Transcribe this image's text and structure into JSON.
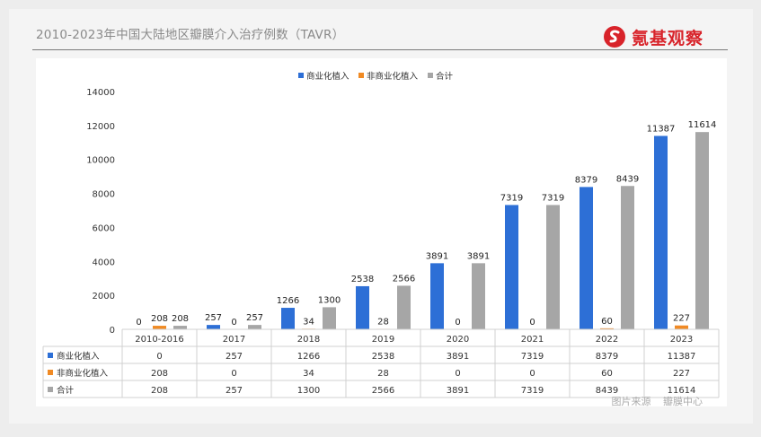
{
  "header": {
    "title": "2010-2023年中国大陆地区瓣膜介入治疗例数（TAVR）",
    "logo_text": "氪基观察",
    "logo_icon": "circle-s-logo-icon",
    "brand_color": "#d8232a"
  },
  "footer": {
    "source_label": "图片来源",
    "source_name": "瓣膜中心"
  },
  "chart_data": {
    "type": "bar",
    "title": "",
    "xlabel": "",
    "ylabel": "",
    "ylim": [
      0,
      14000
    ],
    "yticks": [
      0,
      2000,
      4000,
      6000,
      8000,
      10000,
      12000,
      14000
    ],
    "grid": false,
    "legend_position": "top",
    "data_table": true,
    "categories": [
      "2010-2016",
      "2017",
      "2018",
      "2019",
      "2020",
      "2021",
      "2022",
      "2023"
    ],
    "series": [
      {
        "name": "商业化植入",
        "color": "#2d6fd6",
        "values": [
          0,
          257,
          1266,
          2538,
          3891,
          7319,
          8379,
          11387
        ]
      },
      {
        "name": "非商业化植入",
        "color": "#f08a24",
        "values": [
          208,
          0,
          34,
          28,
          0,
          0,
          60,
          227
        ]
      },
      {
        "name": "合计",
        "color": "#a6a6a6",
        "values": [
          208,
          257,
          1300,
          2566,
          3891,
          7319,
          8439,
          11614
        ]
      }
    ]
  }
}
